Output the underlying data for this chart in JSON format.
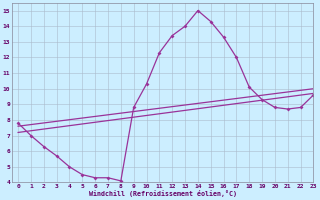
{
  "xlabel": "Windchill (Refroidissement éolien,°C)",
  "background_color": "#cceeff",
  "grid_color": "#aabbcc",
  "line_color": "#993399",
  "xlim": [
    -0.5,
    23
  ],
  "ylim": [
    4,
    15.5
  ],
  "xticks": [
    0,
    1,
    2,
    3,
    4,
    5,
    6,
    7,
    8,
    9,
    10,
    11,
    12,
    13,
    14,
    15,
    16,
    17,
    18,
    19,
    20,
    21,
    22,
    23
  ],
  "yticks": [
    4,
    5,
    6,
    7,
    8,
    9,
    10,
    11,
    12,
    13,
    14,
    15
  ],
  "line1_x": [
    0,
    1,
    2,
    3,
    4,
    5,
    6,
    7,
    8,
    9,
    10,
    11,
    12,
    13,
    14,
    15,
    16,
    17,
    18,
    19,
    20,
    21,
    22,
    23
  ],
  "line1_y": [
    7.8,
    7.0,
    6.3,
    5.7,
    5.0,
    4.5,
    4.3,
    4.3,
    4.1,
    8.8,
    10.3,
    12.3,
    13.4,
    14.0,
    15.0,
    14.3,
    13.3,
    12.0,
    10.1,
    9.3,
    8.8,
    8.7,
    8.8,
    9.6
  ],
  "line2_x": [
    0,
    23
  ],
  "line2_y": [
    7.2,
    9.7
  ],
  "line3_x": [
    0,
    23
  ],
  "line3_y": [
    7.6,
    10.0
  ],
  "xlabel_color": "#660066",
  "tick_color": "#660066"
}
